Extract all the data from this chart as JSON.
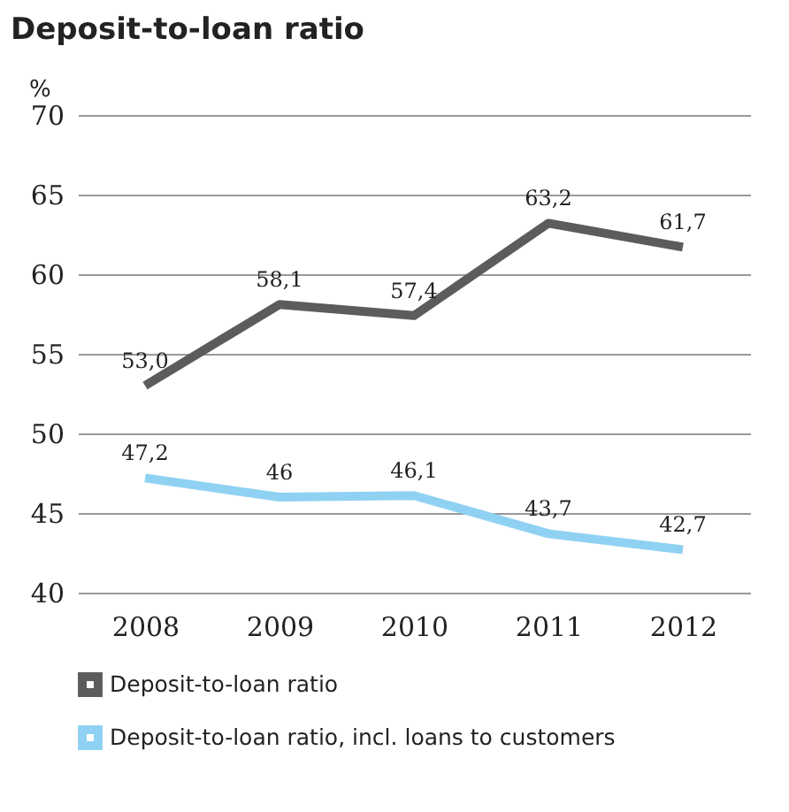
{
  "chart_data": {
    "type": "line",
    "title": "Deposit-to-loan ratio",
    "ylabel": "%",
    "categories": [
      "2008",
      "2009",
      "2010",
      "2011",
      "2012"
    ],
    "series": [
      {
        "name": "Deposit-to-loan ratio",
        "color": "#5c5c5c",
        "values": [
          53.0,
          58.1,
          57.4,
          63.2,
          61.7
        ],
        "value_labels": [
          "53,0",
          "58,1",
          "57,4",
          "63,2",
          "61,7"
        ]
      },
      {
        "name": "Deposit-to-loan ratio, incl. loans to customers",
        "color": "#8fd1f2",
        "values": [
          47.2,
          46,
          46.1,
          43.7,
          42.7
        ],
        "value_labels": [
          "47,2",
          "46",
          "46,1",
          "43,7",
          "42,7"
        ]
      }
    ],
    "ylim": [
      40,
      70
    ],
    "yticks": [
      40,
      45,
      50,
      55,
      60,
      65,
      70
    ],
    "grid": "y",
    "legend": "bottom",
    "marker": "none",
    "line_style": "solid"
  }
}
